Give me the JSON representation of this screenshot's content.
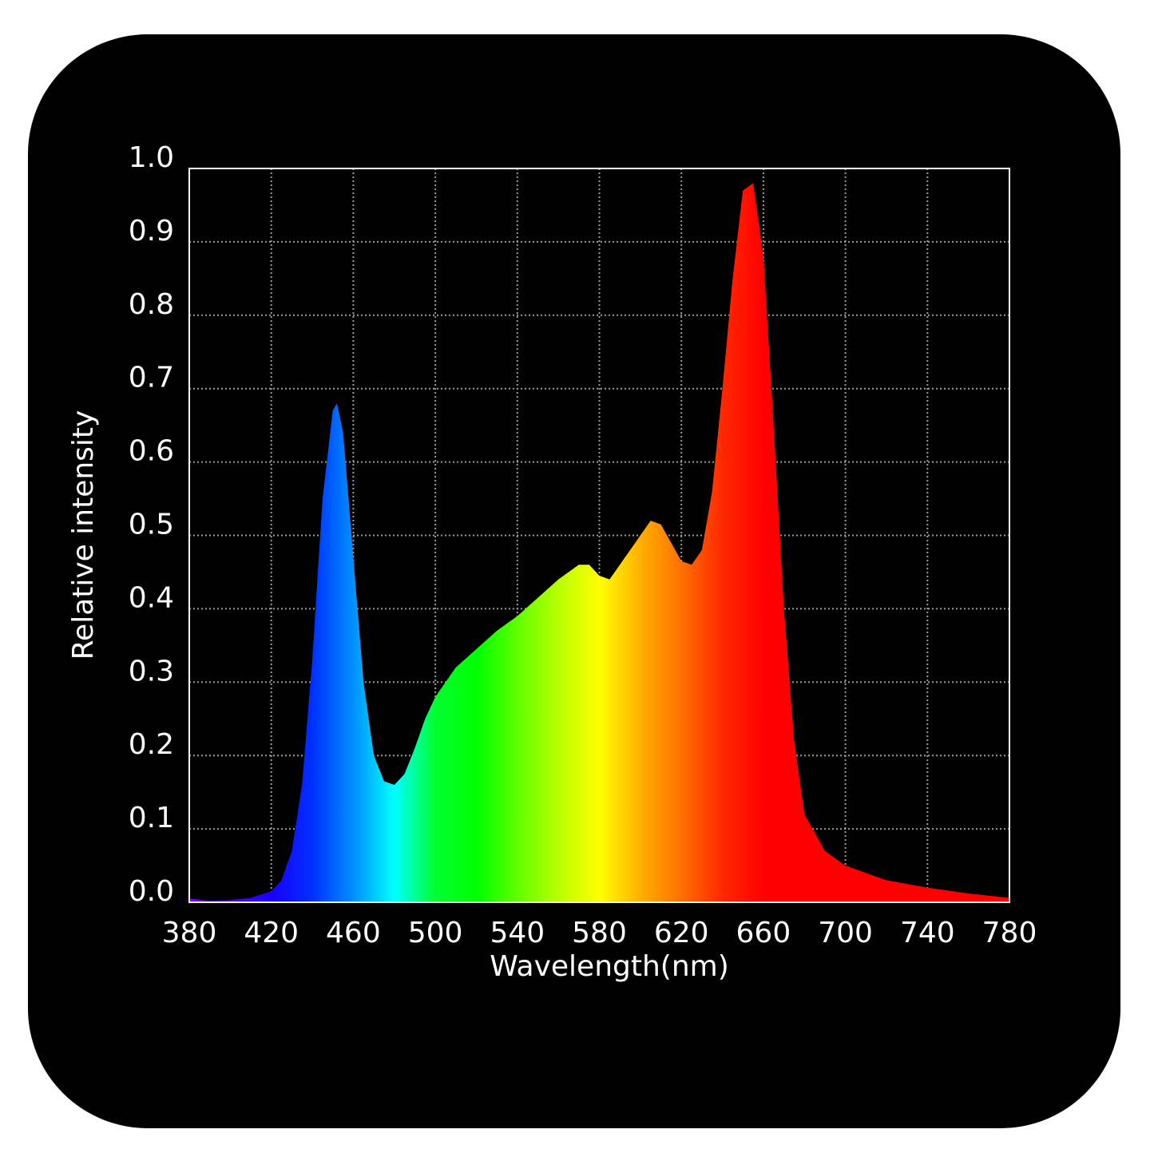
{
  "chart_data": {
    "type": "area",
    "xlabel": "Wavelength(nm)",
    "ylabel": "Relative intensity",
    "x": [
      380,
      390,
      400,
      410,
      420,
      425,
      430,
      435,
      440,
      445,
      450,
      452,
      455,
      460,
      465,
      470,
      475,
      480,
      485,
      490,
      495,
      500,
      510,
      520,
      530,
      540,
      550,
      560,
      570,
      575,
      580,
      585,
      590,
      600,
      605,
      610,
      615,
      620,
      625,
      630,
      635,
      640,
      645,
      650,
      655,
      660,
      665,
      670,
      675,
      680,
      690,
      700,
      720,
      740,
      760,
      780
    ],
    "values": [
      0.005,
      0.002,
      0.003,
      0.006,
      0.015,
      0.03,
      0.07,
      0.16,
      0.33,
      0.55,
      0.67,
      0.68,
      0.64,
      0.47,
      0.3,
      0.2,
      0.165,
      0.16,
      0.175,
      0.21,
      0.25,
      0.28,
      0.32,
      0.345,
      0.37,
      0.39,
      0.415,
      0.44,
      0.46,
      0.46,
      0.445,
      0.44,
      0.46,
      0.5,
      0.52,
      0.515,
      0.49,
      0.465,
      0.46,
      0.48,
      0.56,
      0.7,
      0.85,
      0.97,
      0.98,
      0.88,
      0.65,
      0.4,
      0.22,
      0.12,
      0.07,
      0.05,
      0.03,
      0.02,
      0.012,
      0.006
    ],
    "spectrum_colors": [
      "#8000ff",
      "#5000ff",
      "#1800ff",
      "#0030ff",
      "#0090ff",
      "#00ffff",
      "#00ff30",
      "#00ff00",
      "#60ff00",
      "#b8ff00",
      "#ffff00",
      "#ffb000",
      "#ff7000",
      "#ff2800",
      "#ff0000",
      "#ff0000",
      "#ff0000",
      "#ff0000",
      "#ff0000",
      "#ff0000",
      "#ff0000"
    ],
    "xlim": [
      380,
      780
    ],
    "ylim": [
      0,
      1
    ],
    "xticks": [
      380,
      420,
      460,
      500,
      540,
      580,
      620,
      660,
      700,
      740,
      780
    ],
    "yticks": [
      {
        "value": 0,
        "label": "0.0"
      },
      0.1,
      0.2,
      0.3,
      0.4,
      0.5,
      0.6,
      0.7,
      0.8,
      0.9,
      {
        "value": 1,
        "label": "1.0"
      }
    ],
    "grid": true
  }
}
